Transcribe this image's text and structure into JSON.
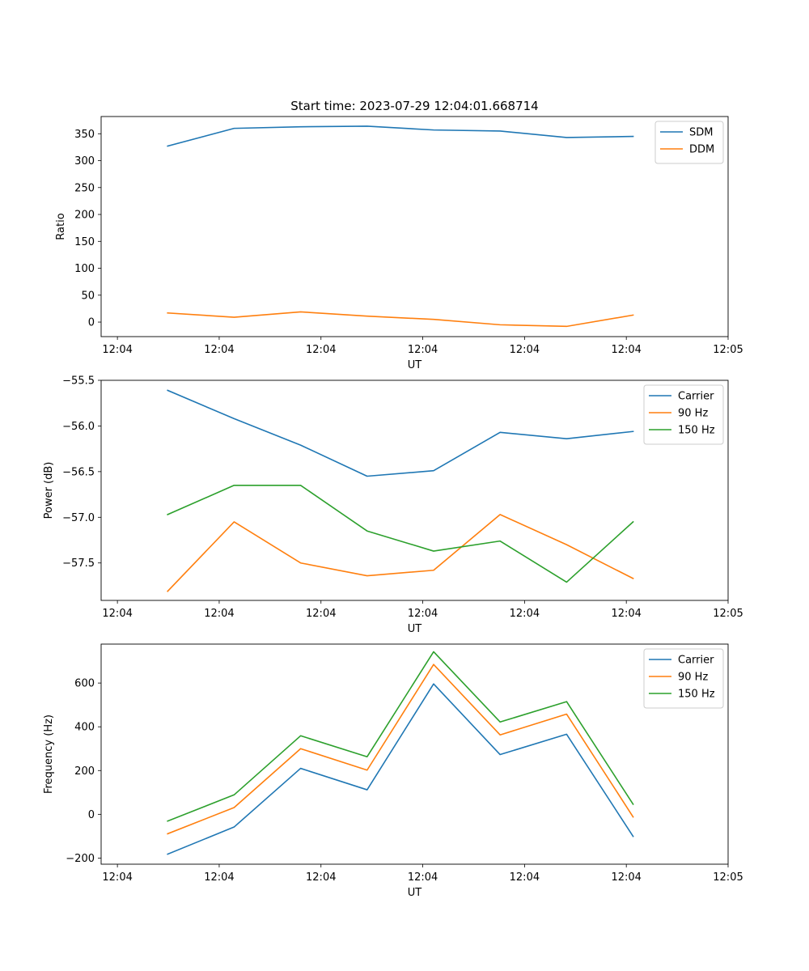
{
  "chart_data": [
    {
      "type": "line",
      "title": "Start time: 2023-07-29 12:04:01.668714",
      "xlabel": "UT",
      "ylabel": "Ratio",
      "xlim": [
        -0.12,
        4.5
      ],
      "ylim": [
        -27,
        382
      ],
      "xticks": [
        0,
        0.75,
        1.5,
        2.25,
        3.0,
        3.75,
        4.5
      ],
      "xtick_labels": [
        "12:04",
        "12:04",
        "12:04",
        "12:04",
        "12:04",
        "12:04",
        "12:05"
      ],
      "yticks": [
        0,
        50,
        100,
        150,
        200,
        250,
        300,
        350
      ],
      "ytick_labels": [
        "0",
        "50",
        "100",
        "150",
        "200",
        "250",
        "300",
        "350"
      ],
      "legend_position": "top-right",
      "x": [
        0.37,
        0.86,
        1.35,
        1.84,
        2.33,
        2.82,
        3.31,
        3.8
      ],
      "series": [
        {
          "name": "SDM",
          "color": "#1f77b4",
          "values": [
            327,
            360,
            363,
            364,
            357,
            355,
            343,
            345
          ]
        },
        {
          "name": "DDM",
          "color": "#ff7f0e",
          "values": [
            17,
            9,
            19,
            11,
            5,
            -5,
            -8,
            13
          ]
        }
      ]
    },
    {
      "type": "line",
      "title": "",
      "xlabel": "UT",
      "ylabel": "Power (dB)",
      "xlim": [
        -0.12,
        4.5
      ],
      "ylim": [
        -57.91,
        -55.5
      ],
      "xticks": [
        0,
        0.75,
        1.5,
        2.25,
        3.0,
        3.75,
        4.5
      ],
      "xtick_labels": [
        "12:04",
        "12:04",
        "12:04",
        "12:04",
        "12:04",
        "12:04",
        "12:05"
      ],
      "yticks": [
        -57.5,
        -57.0,
        -56.5,
        -56.0,
        -55.5
      ],
      "ytick_labels": [
        "−57.5",
        "−57.0",
        "−56.5",
        "−56.0",
        "−55.5"
      ],
      "legend_position": "top-right",
      "x": [
        0.37,
        0.86,
        1.35,
        1.84,
        2.33,
        2.82,
        3.31,
        3.8
      ],
      "series": [
        {
          "name": "Carrier",
          "color": "#1f77b4",
          "values": [
            -55.61,
            -55.92,
            -56.21,
            -56.55,
            -56.49,
            -56.07,
            -56.14,
            -56.06
          ]
        },
        {
          "name": "90 Hz",
          "color": "#ff7f0e",
          "values": [
            -57.81,
            -57.05,
            -57.5,
            -57.64,
            -57.58,
            -56.97,
            -57.3,
            -57.67
          ]
        },
        {
          "name": "150 Hz",
          "color": "#2ca02c",
          "values": [
            -56.97,
            -56.65,
            -56.65,
            -57.15,
            -57.37,
            -57.26,
            -57.71,
            -57.05
          ]
        }
      ]
    },
    {
      "type": "line",
      "title": "",
      "xlabel": "UT",
      "ylabel": "Frequency (Hz)",
      "xlim": [
        -0.12,
        4.5
      ],
      "ylim": [
        -228,
        778
      ],
      "xticks": [
        0,
        0.75,
        1.5,
        2.25,
        3.0,
        3.75,
        4.5
      ],
      "xtick_labels": [
        "12:04",
        "12:04",
        "12:04",
        "12:04",
        "12:04",
        "12:04",
        "12:05"
      ],
      "yticks": [
        -200,
        0,
        200,
        400,
        600
      ],
      "ytick_labels": [
        "−200",
        "0",
        "200",
        "400",
        "600"
      ],
      "legend_position": "top-right",
      "x": [
        0.37,
        0.86,
        1.35,
        1.84,
        2.33,
        2.82,
        3.31,
        3.8
      ],
      "series": [
        {
          "name": "Carrier",
          "color": "#1f77b4",
          "values": [
            -182,
            -58,
            210,
            112,
            596,
            273,
            366,
            -101
          ]
        },
        {
          "name": "90 Hz",
          "color": "#ff7f0e",
          "values": [
            -89,
            31,
            300,
            202,
            685,
            363,
            458,
            -12
          ]
        },
        {
          "name": "150 Hz",
          "color": "#2ca02c",
          "values": [
            -31,
            89,
            359,
            263,
            743,
            422,
            515,
            46
          ]
        }
      ]
    }
  ]
}
